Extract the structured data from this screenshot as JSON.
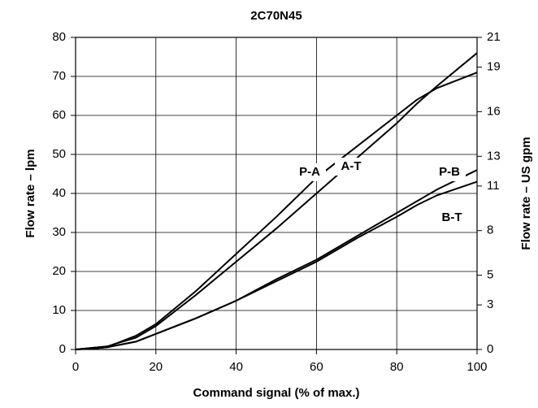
{
  "chart_data": {
    "type": "line",
    "title": "2C70N45",
    "xlabel": "Command signal (% of max.)",
    "ylabel": "Flow rate – lpm",
    "y2label": "Flow rate – US gpm",
    "x": [
      0,
      5,
      8,
      10,
      15,
      20,
      30,
      40,
      50,
      60,
      70,
      80,
      85,
      90,
      100
    ],
    "series": [
      {
        "name": "P-A",
        "color": "#000000",
        "values": [
          0,
          0.5,
          0.8,
          1.5,
          3.5,
          6.5,
          15,
          24.5,
          34,
          44,
          52,
          60,
          64,
          67,
          71
        ]
      },
      {
        "name": "A-T",
        "color": "#000000",
        "values": [
          0,
          0.5,
          0.8,
          1.5,
          3,
          6,
          14,
          22.5,
          31,
          40,
          49,
          58,
          63,
          67.5,
          76
        ]
      },
      {
        "name": "P-B",
        "color": "#000000",
        "values": [
          0,
          0.3,
          0.6,
          1,
          2,
          4,
          8,
          12.5,
          18,
          23,
          29,
          35,
          38,
          41,
          46
        ]
      },
      {
        "name": "B-T",
        "color": "#000000",
        "values": [
          0,
          0.3,
          0.6,
          1,
          2,
          4,
          8,
          12.5,
          17.5,
          22.5,
          28.5,
          34,
          37,
          39.5,
          43
        ]
      }
    ],
    "xlim": [
      0,
      100
    ],
    "xticks": [
      0,
      20,
      40,
      60,
      80,
      100
    ],
    "ylim": [
      0,
      80
    ],
    "yticks": [
      0,
      10,
      20,
      30,
      40,
      50,
      60,
      70,
      80
    ],
    "y2lim": [
      0,
      21
    ],
    "y2ticks": [
      0,
      3,
      5,
      8,
      11,
      13,
      16,
      19,
      21
    ],
    "grid": true
  }
}
